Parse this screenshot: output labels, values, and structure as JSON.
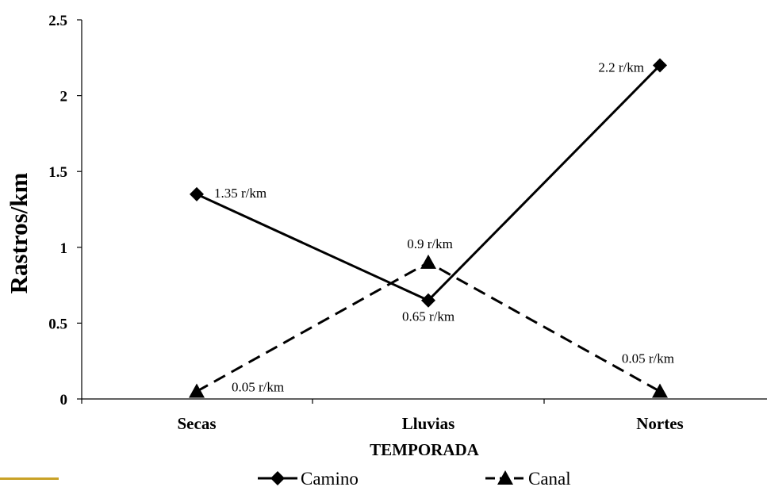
{
  "chart_data": {
    "type": "line",
    "categories": [
      "Secas",
      "Lluvias",
      "Nortes"
    ],
    "xlabel": "TEMPORADA",
    "ylabel": "Rastros/km",
    "ylim": [
      0,
      2.5
    ],
    "yticks": [
      "0",
      "0.5",
      "1",
      "1.5",
      "2",
      "2.5"
    ],
    "grid": false,
    "legend_position": "bottom",
    "series": [
      {
        "name": "Camino",
        "values": [
          1.35,
          0.65,
          2.2
        ],
        "labels": [
          "1.35 r/km",
          "0.65 r/km",
          "2.2 r/km"
        ],
        "marker": "diamond",
        "line_style": "solid",
        "color": "#000000"
      },
      {
        "name": "Canal",
        "values": [
          0.05,
          0.9,
          0.05
        ],
        "labels": [
          "0.05 r/km",
          "0.9 r/km",
          "0.05 r/km"
        ],
        "marker": "triangle",
        "line_style": "dashed",
        "color": "#000000"
      }
    ]
  },
  "accent_color": "#c9a227"
}
